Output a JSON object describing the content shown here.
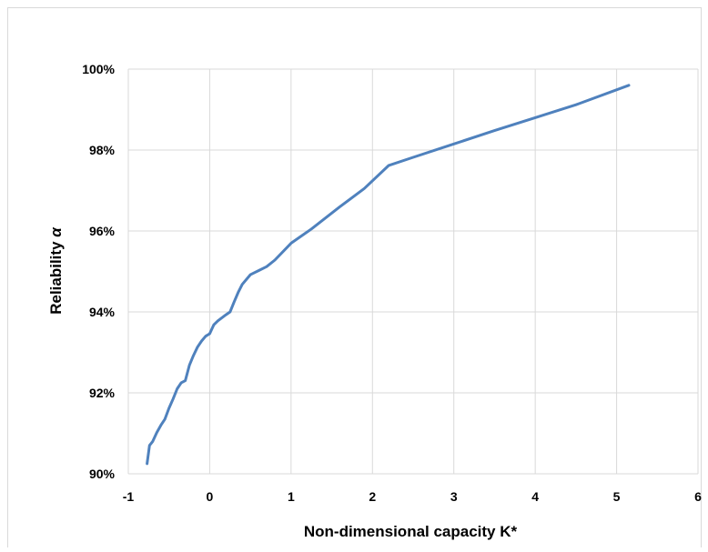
{
  "chart_data": {
    "type": "line",
    "xlabel": "Non-dimensional capacity  K*",
    "ylabel_text": "Reliability ",
    "ylabel_symbol": "α",
    "xlim": [
      -1,
      6
    ],
    "ylim": [
      0.9,
      1.0
    ],
    "x_ticks": [
      -1,
      0,
      1,
      2,
      3,
      4,
      5,
      6
    ],
    "x_tick_labels": [
      "-1",
      "0",
      "1",
      "2",
      "3",
      "4",
      "5",
      "6"
    ],
    "y_ticks": [
      0.9,
      0.92,
      0.94,
      0.96,
      0.98,
      1.0
    ],
    "y_tick_labels": [
      "90%",
      "92%",
      "94%",
      "96%",
      "98%",
      "100%"
    ],
    "grid": true,
    "line_color": "#4f81bd",
    "series": [
      {
        "x": [
          -0.77,
          -0.74,
          -0.7,
          -0.65,
          -0.6,
          -0.55,
          -0.5,
          -0.45,
          -0.4,
          -0.35,
          -0.3,
          -0.25,
          -0.2,
          -0.15,
          -0.1,
          -0.05,
          0.0,
          0.05,
          0.1,
          0.2,
          0.25,
          0.3,
          0.35,
          0.4,
          0.5,
          0.55,
          0.6,
          0.7,
          0.8,
          1.0,
          1.25,
          1.6,
          1.9,
          2.2,
          2.5,
          3.0,
          3.5,
          4.0,
          4.5,
          5.15
        ],
        "y": [
          0.9025,
          0.907,
          0.908,
          0.9102,
          0.912,
          0.9135,
          0.9162,
          0.9185,
          0.921,
          0.9225,
          0.923,
          0.9268,
          0.9292,
          0.9313,
          0.9328,
          0.934,
          0.9346,
          0.9368,
          0.9378,
          0.9393,
          0.94,
          0.9425,
          0.9448,
          0.9468,
          0.9492,
          0.9497,
          0.9502,
          0.9512,
          0.9528,
          0.957,
          0.9605,
          0.966,
          0.9705,
          0.9762,
          0.9782,
          0.9815,
          0.9848,
          0.988,
          0.9912,
          0.996
        ]
      }
    ]
  }
}
